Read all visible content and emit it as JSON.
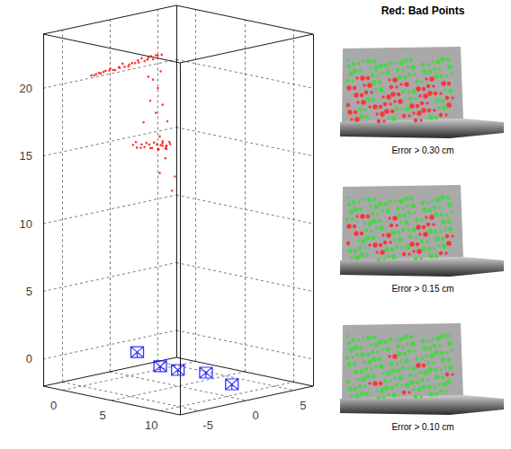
{
  "chart_data": {
    "type": "scatter3d",
    "xlim": [
      -2,
      12
    ],
    "xticks": [
      0,
      5,
      10
    ],
    "ylim": [
      -7,
      7
    ],
    "yticks": [
      -5,
      0,
      5
    ],
    "zlim": [
      -2,
      24
    ],
    "zticks": [
      0,
      5,
      10,
      15,
      20
    ],
    "grid": true,
    "series": [
      {
        "color": "#ff0000",
        "marker": "point",
        "x": [
          0,
          0.3,
          -0.2,
          0.1,
          0,
          0.3,
          -0.2,
          0.1,
          0,
          0.3,
          -0.2,
          0.1,
          0,
          0.3,
          -0.2,
          0.1,
          0,
          0.3,
          -0.2,
          0.1,
          0,
          0.3,
          -0.2,
          0.1,
          0,
          0.3,
          -0.2,
          0.1,
          0,
          0.3,
          0,
          0.2,
          -0.2,
          0.1,
          0,
          0.2,
          -0.2,
          0.1,
          0,
          0.2,
          -0.2,
          0.1,
          0,
          0.2,
          -0.2,
          0.1,
          0,
          0.2,
          -0.2,
          0.1,
          0,
          0.2,
          -0.2,
          0.1,
          0,
          0,
          0,
          0,
          0,
          0,
          0,
          0,
          0,
          0,
          0,
          0,
          0,
          0
        ],
        "y": [
          -4,
          -3.8,
          -3.5,
          -3.3,
          -3,
          -2.8,
          -2.5,
          -2.2,
          -2,
          -1.8,
          -1.5,
          -1.2,
          -1,
          -0.8,
          -0.5,
          -0.2,
          0,
          0.3,
          0.5,
          0.8,
          1,
          1.3,
          1.5,
          1.8,
          2,
          2.2,
          2.5,
          2.7,
          3,
          3.1,
          0.4,
          0.6,
          0.9,
          1.1,
          1.3,
          1.6,
          1.8,
          2.0,
          2.2,
          2.4,
          2.6,
          2.8,
          3.0,
          3.1,
          3.3,
          3.4,
          3.5,
          3.6,
          3.7,
          3.8,
          3.9,
          4.0,
          4.1,
          4.2,
          3.2,
          2.5,
          3,
          2.2,
          3.5,
          2.8,
          4,
          3.2,
          4.5,
          3.8,
          2,
          3.3,
          1.5,
          4.8
        ],
        "z": [
          20.8,
          20.9,
          20.7,
          20.9,
          20.8,
          21.0,
          20.8,
          20.9,
          21.0,
          20.9,
          20.8,
          21.0,
          20.9,
          21.0,
          21.1,
          20.9,
          21.0,
          21.1,
          21.0,
          21.2,
          21.0,
          21.1,
          21.2,
          21.1,
          21.2,
          21.1,
          21.2,
          21.3,
          21.2,
          21.3,
          15.0,
          14.8,
          15.1,
          14.7,
          14.9,
          15.0,
          14.6,
          14.8,
          14.5,
          14.9,
          14.4,
          14.7,
          14.3,
          14.6,
          14.2,
          14.5,
          14.8,
          14.3,
          14.6,
          14.2,
          14.4,
          14.7,
          14.3,
          14.5,
          15.2,
          19.5,
          18.8,
          18,
          17.5,
          17,
          16.2,
          12.5,
          11,
          13.5,
          19.8,
          20,
          16.5,
          12
        ]
      },
      {
        "color": "#0000ff",
        "marker": "camera",
        "x": [
          1.2,
          5.8,
          7.6,
          9.7,
          10.6
        ],
        "y": [
          -0.4,
          -2.7,
          -2.7,
          -1.9,
          -0.1
        ],
        "z": [
          0,
          0,
          0,
          0,
          -1
        ]
      }
    ]
  },
  "images": {
    "title": "Red: Bad Points",
    "captions": [
      "Error > 0.30 cm",
      "Error > 0.15 cm",
      "Error > 0.10 cm"
    ]
  }
}
